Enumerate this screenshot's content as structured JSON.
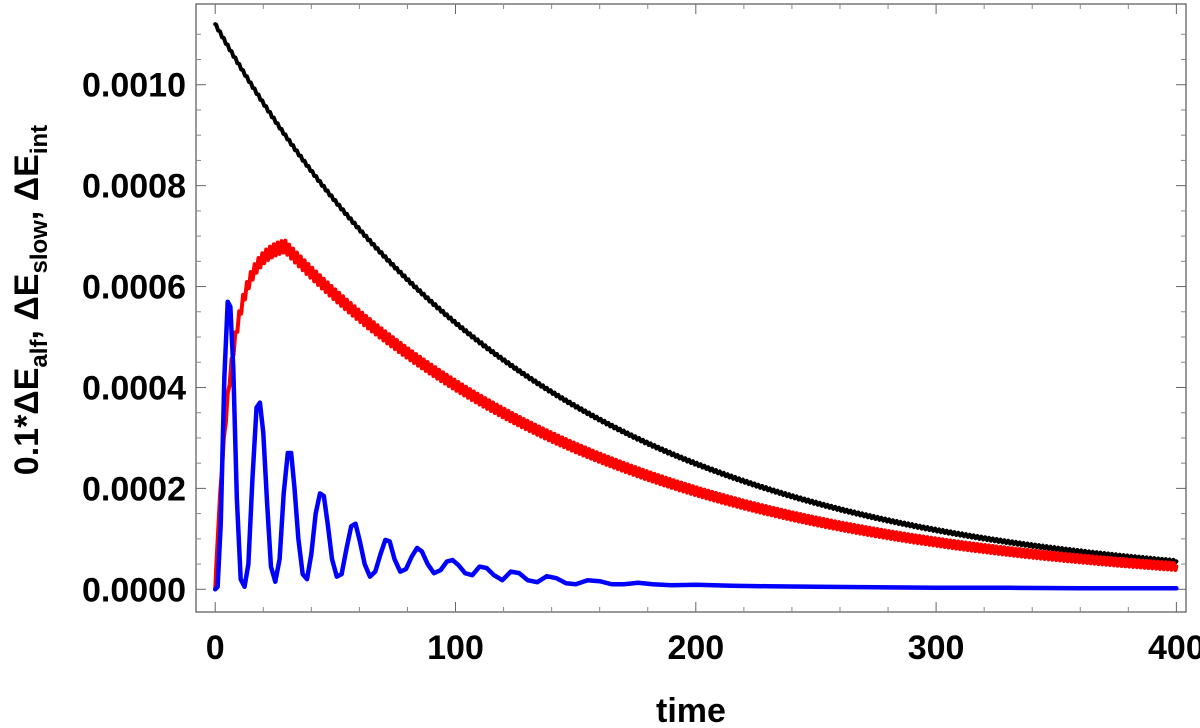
{
  "chart_data": {
    "type": "line",
    "title": "",
    "xlabel": "time",
    "ylabel": {
      "coefficient": "0.1",
      "multiply": "*",
      "delta": "Δ",
      "energy": "E",
      "sub_alf": "alf",
      "sub_slow": "slow",
      "sub_int": "int",
      "separator": ", "
    },
    "xlim": [
      -8,
      404
    ],
    "ylim": [
      -4.5e-05,
      0.00116
    ],
    "x_ticks": [
      0,
      100,
      200,
      300,
      400
    ],
    "x_tick_labels": [
      "0",
      "100",
      "200",
      "300",
      "400"
    ],
    "y_ticks": [
      0.0,
      0.0002,
      0.0004,
      0.0006,
      0.0008,
      0.001
    ],
    "y_tick_labels": [
      "0.0000",
      "0.0002",
      "0.0004",
      "0.0006",
      "0.0008",
      "0.0010"
    ],
    "grid": false,
    "legend": "none",
    "series": [
      {
        "name": "black",
        "color": "#000000",
        "model": "exp_decay",
        "x_range": [
          0,
          400
        ],
        "y0": 0.00112,
        "decay_time": 133,
        "oscillation_amplitude": 2.5e-06,
        "oscillation_period": 1.6
      },
      {
        "name": "red",
        "color": "#ff0000",
        "model": "rise_then_decay",
        "x_range": [
          0,
          400
        ],
        "peak_x": 29,
        "peak_y": 0.00068,
        "end_y": 4.5e-05,
        "oscillation_amplitude": 1.2e-05,
        "oscillation_period": 1.6
      },
      {
        "name": "blue",
        "color": "#0000ff",
        "model": "damped_oscillation",
        "x_range": [
          0,
          400
        ],
        "points": [
          [
            0,
            0
          ],
          [
            1,
            5e-06
          ],
          [
            2.3,
            0.00013
          ],
          [
            3.8,
            0.00042
          ],
          [
            5.2,
            0.00057
          ],
          [
            6.3,
            0.00056
          ],
          [
            7.5,
            0.00044
          ],
          [
            9,
            0.00018
          ],
          [
            10.6,
            2e-05
          ],
          [
            12.2,
            5e-06
          ],
          [
            13.8,
            5e-05
          ],
          [
            15.5,
            0.00022
          ],
          [
            17.2,
            0.00036
          ],
          [
            18.6,
            0.00037
          ],
          [
            20,
            0.00031
          ],
          [
            21.6,
            0.00017
          ],
          [
            23.2,
            4.5e-05
          ],
          [
            25,
            1.5e-05
          ],
          [
            26.8,
            6e-05
          ],
          [
            28.5,
            0.00019
          ],
          [
            30.2,
            0.00027
          ],
          [
            31.6,
            0.00027
          ],
          [
            33,
            0.0002
          ],
          [
            34.6,
            0.0001
          ],
          [
            36.4,
            3e-05
          ],
          [
            38.2,
            2e-05
          ],
          [
            40,
            7e-05
          ],
          [
            41.8,
            0.00015
          ],
          [
            43.6,
            0.00019
          ],
          [
            45.2,
            0.000185
          ],
          [
            46.8,
            0.00013
          ],
          [
            48.6,
            6e-05
          ],
          [
            50.6,
            2.5e-05
          ],
          [
            52.6,
            3e-05
          ],
          [
            54.6,
            8e-05
          ],
          [
            56.6,
            0.000125
          ],
          [
            58.4,
            0.00013
          ],
          [
            60.2,
            9.5e-05
          ],
          [
            62.2,
            5e-05
          ],
          [
            64.4,
            2.5e-05
          ],
          [
            66.6,
            3.5e-05
          ],
          [
            68.8,
            7e-05
          ],
          [
            70.8,
            9.8e-05
          ],
          [
            72.6,
            9.5e-05
          ],
          [
            74.6,
            6e-05
          ],
          [
            77,
            3.5e-05
          ],
          [
            79.4,
            4e-05
          ],
          [
            81.8,
            6.5e-05
          ],
          [
            84,
            8.2e-05
          ],
          [
            86,
            7.5e-05
          ],
          [
            88.4,
            5e-05
          ],
          [
            91,
            3.2e-05
          ],
          [
            93.8,
            3.8e-05
          ],
          [
            96.4,
            5.5e-05
          ],
          [
            98.8,
            5.8e-05
          ],
          [
            101.2,
            4.8e-05
          ],
          [
            104,
            3.2e-05
          ],
          [
            107,
            2.8e-05
          ],
          [
            110,
            4.5e-05
          ],
          [
            113,
            4.2e-05
          ],
          [
            116,
            2.8e-05
          ],
          [
            119.5,
            1.8e-05
          ],
          [
            123,
            3.5e-05
          ],
          [
            126.5,
            3.2e-05
          ],
          [
            130,
            1.8e-05
          ],
          [
            134,
            1.4e-05
          ],
          [
            138,
            2.6e-05
          ],
          [
            142,
            2.2e-05
          ],
          [
            146,
            1.2e-05
          ],
          [
            150,
            1e-05
          ],
          [
            155,
            1.8e-05
          ],
          [
            160,
            1.6e-05
          ],
          [
            165,
            1e-05
          ],
          [
            170,
            1e-05
          ],
          [
            176,
            1.3e-05
          ],
          [
            182,
            1e-05
          ],
          [
            190,
            8e-06
          ],
          [
            200,
            9e-06
          ],
          [
            215,
            7e-06
          ],
          [
            230,
            6e-06
          ],
          [
            250,
            5e-06
          ],
          [
            275,
            4e-06
          ],
          [
            300,
            3e-06
          ],
          [
            330,
            3e-06
          ],
          [
            360,
            2e-06
          ],
          [
            400,
            2e-06
          ]
        ]
      }
    ]
  }
}
